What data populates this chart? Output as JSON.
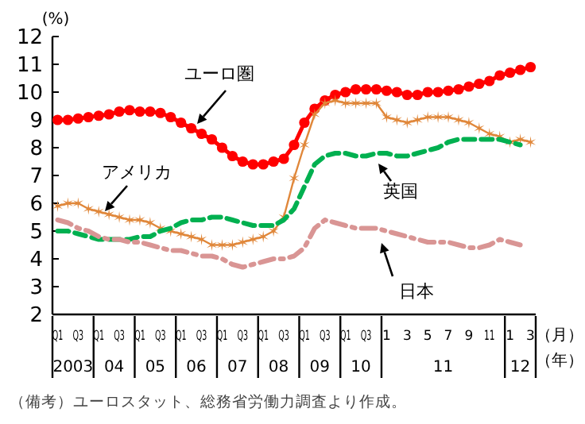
{
  "chart_data": {
    "type": "line",
    "ylabel": "(%)",
    "ylim": [
      2,
      12
    ],
    "yticks": [
      2,
      3,
      4,
      5,
      6,
      7,
      8,
      9,
      10,
      11,
      12
    ],
    "categories": [
      "Q1",
      null,
      "Q3",
      null,
      "Q1",
      null,
      "Q3",
      null,
      "Q1",
      null,
      "Q3",
      null,
      "Q1",
      null,
      "Q3",
      null,
      "Q1",
      null,
      "Q3",
      null,
      "Q1",
      null,
      "Q3",
      null,
      "Q1",
      null,
      "Q3",
      null,
      "Q1",
      null,
      "Q3",
      null,
      "1",
      null,
      "3",
      null,
      "5",
      null,
      "7",
      null,
      "9",
      null,
      "11",
      null,
      "1",
      null,
      "3"
    ],
    "series": [
      {
        "name": "ユーロ圏",
        "color": "#ff0000",
        "marker": "circle",
        "line_style": "solid",
        "values": [
          9.0,
          9.0,
          9.05,
          9.1,
          9.15,
          9.2,
          9.3,
          9.35,
          9.3,
          9.3,
          9.25,
          9.1,
          8.9,
          8.7,
          8.5,
          8.3,
          8.0,
          7.7,
          7.5,
          7.4,
          7.4,
          7.5,
          7.6,
          8.1,
          8.9,
          9.4,
          9.7,
          9.9,
          10.0,
          10.1,
          10.1,
          10.1,
          10.05,
          10.0,
          9.9,
          9.9,
          10.0,
          10.0,
          10.05,
          10.1,
          10.2,
          10.3,
          10.4,
          10.6,
          10.7,
          10.8,
          10.9
        ]
      },
      {
        "name": "アメリカ",
        "color": "#e0873a",
        "marker": "cross",
        "line_style": "solid",
        "values": [
          5.9,
          6.0,
          6.0,
          5.8,
          5.7,
          5.6,
          5.5,
          5.4,
          5.4,
          5.3,
          5.1,
          5.0,
          4.9,
          4.8,
          4.7,
          4.5,
          4.5,
          4.5,
          4.6,
          4.7,
          4.8,
          5.0,
          5.5,
          6.9,
          8.1,
          9.2,
          9.6,
          9.7,
          9.6,
          9.6,
          9.6,
          9.6,
          9.1,
          9.0,
          8.9,
          9.0,
          9.1,
          9.1,
          9.1,
          9.0,
          8.9,
          8.7,
          8.5,
          8.4,
          8.2,
          8.3,
          8.2
        ]
      },
      {
        "name": "英国",
        "color": "#00b050",
        "marker": "none",
        "line_style": "dashed",
        "values": [
          5.0,
          5.0,
          4.9,
          4.8,
          4.7,
          4.7,
          4.7,
          4.7,
          4.8,
          4.8,
          5.0,
          5.1,
          5.3,
          5.4,
          5.4,
          5.5,
          5.5,
          5.4,
          5.3,
          5.2,
          5.2,
          5.2,
          5.4,
          5.8,
          6.6,
          7.4,
          7.7,
          7.8,
          7.8,
          7.7,
          7.7,
          7.8,
          7.8,
          7.7,
          7.7,
          7.8,
          7.9,
          8.0,
          8.2,
          8.3,
          8.3,
          8.3,
          8.3,
          8.3,
          8.2,
          8.1,
          null
        ]
      },
      {
        "name": "日本",
        "color": "#d99594",
        "marker": "none",
        "line_style": "dotted",
        "values": [
          5.4,
          5.3,
          5.1,
          5.0,
          4.8,
          4.7,
          4.7,
          4.6,
          4.6,
          4.5,
          4.4,
          4.3,
          4.3,
          4.2,
          4.1,
          4.1,
          4.0,
          3.8,
          3.7,
          3.8,
          3.9,
          4.0,
          4.0,
          4.1,
          4.4,
          5.1,
          5.4,
          5.3,
          5.2,
          5.1,
          5.1,
          5.1,
          5.0,
          4.9,
          4.8,
          4.7,
          4.6,
          4.6,
          4.6,
          4.5,
          4.4,
          4.4,
          4.5,
          4.7,
          4.6,
          4.5,
          null
        ]
      }
    ],
    "annotations": [
      "2003",
      "04",
      "05",
      "06",
      "07",
      "08",
      "09",
      "10",
      "11",
      "12",
      "（月）",
      "（年）",
      "（備考）ユーロスタット、総務省労働力調査より作成。"
    ]
  }
}
